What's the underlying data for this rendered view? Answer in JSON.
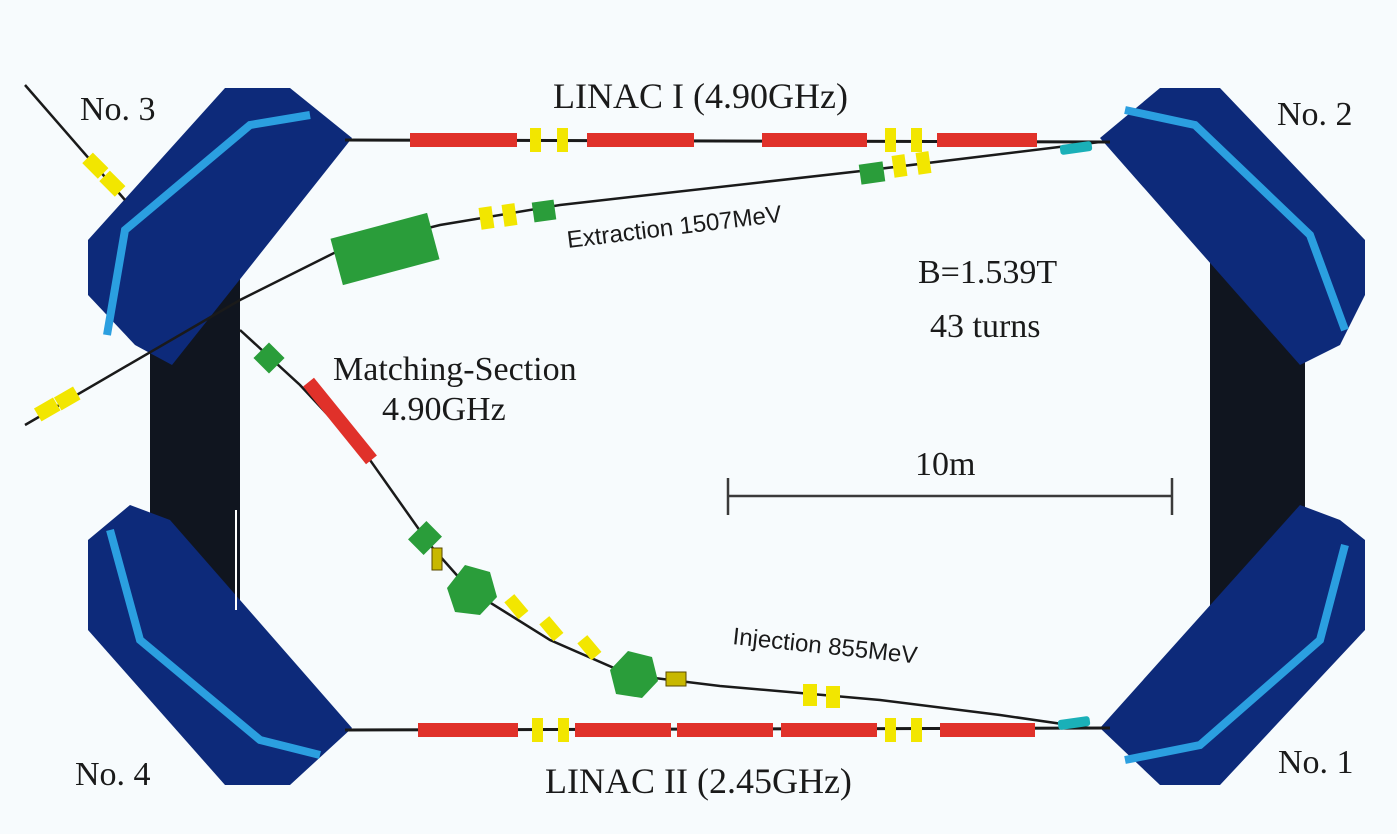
{
  "labels": {
    "magnet_3": "No. 3",
    "magnet_2": "No. 2",
    "magnet_4": "No. 4",
    "magnet_1": "No. 1",
    "linac_1": "LINAC I (4.90GHz)",
    "linac_2": "LINAC II (2.45GHz)",
    "extraction": "Extraction 1507MeV",
    "injection": "Injection 855MeV",
    "matching_line1": "Matching-Section",
    "matching_line2": "4.90GHz",
    "field": "B=1.539T",
    "turns": "43 turns",
    "scale": "10m"
  },
  "colors": {
    "magnet_dark": "#0d2a7a",
    "magnet_stripe": "#2b9fe0",
    "yoke": "#10151f",
    "accelerating_section": "#e0312a",
    "quadrupole": "#f2e600",
    "steerer": "#2a9d3a",
    "septum": "#1ab0b8",
    "beamline": "#1a1a1a"
  }
}
